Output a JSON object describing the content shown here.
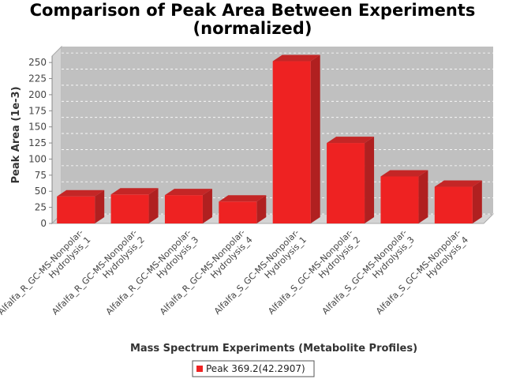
{
  "chart_data": {
    "type": "bar",
    "title_lines": [
      "Comparison of Peak Area Between Experiments",
      "(normalized)"
    ],
    "xlabel": "Mass Spectrum Experiments (Metabolite Profiles)",
    "ylabel": "Peak Area (1e-3)",
    "ylim": [
      0,
      260
    ],
    "yticks": [
      0,
      25,
      50,
      75,
      100,
      125,
      150,
      175,
      200,
      225,
      250
    ],
    "categories": [
      [
        "Alfalfa_R_GC-MS-Nonpolar-",
        "Hydrolysis_1"
      ],
      [
        "Alfalfa_R_GC-MS-Nonpolar-",
        "Hydrolysis_2"
      ],
      [
        "Alfalfa_R_GC-MS-Nonpolar-",
        "Hydrolysis_3"
      ],
      [
        "Alfalfa_R_GC-MS-Nonpolar-",
        "Hydrolysis_4"
      ],
      [
        "Alfalfa_S_GC-MS-Nonpolar-",
        "Hydrolysis_1"
      ],
      [
        "Alfalfa_S_GC-MS-Nonpolar-",
        "Hydrolysis_2"
      ],
      [
        "Alfalfa_S_GC-MS-Nonpolar-",
        "Hydrolysis_3"
      ],
      [
        "Alfalfa_S_GC-MS-Nonpolar-",
        "Hydrolysis_4"
      ]
    ],
    "series": [
      {
        "name": "Peak 369.2(42.2907)",
        "color": "#ee2222",
        "values": [
          42,
          45,
          44,
          34,
          252,
          125,
          73,
          57
        ]
      }
    ],
    "grid": true,
    "legend_position": "bottom"
  }
}
